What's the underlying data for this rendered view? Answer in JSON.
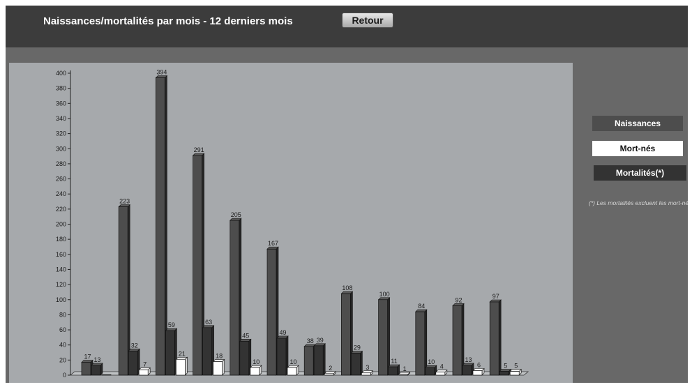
{
  "header": {
    "title": "Naissances/mortalités par mois - 12 derniers mois",
    "back_label": "Retour"
  },
  "legend": {
    "naissances": "Naissances",
    "mort_nes": "Mort-nés",
    "mortalites": "Mortalités(*)"
  },
  "footnote": "(*) Les mortalités excluent les mort-nés",
  "colors": {
    "naissances": "#4d4d4d",
    "mort_nes": "#ffffff",
    "mortalites": "#333333",
    "plot_background": "#a6a9ac",
    "header_background": "#3c3c3c"
  },
  "chart_data": {
    "type": "bar",
    "title": "Naissances/mortalités par mois - 12 derniers mois",
    "xlabel": "",
    "ylabel": "",
    "ylim": [
      0,
      400
    ],
    "y_ticks": [
      0,
      20,
      40,
      60,
      80,
      100,
      120,
      140,
      160,
      180,
      200,
      220,
      240,
      260,
      280,
      300,
      320,
      340,
      360,
      380,
      400
    ],
    "grid": false,
    "legend_position": "right",
    "groups": 12,
    "series": [
      {
        "name": "Naissances",
        "values": [
          17,
          223,
          394,
          291,
          205,
          167,
          38,
          108,
          100,
          84,
          92,
          97
        ]
      },
      {
        "name": "Mortalités(*)",
        "values": [
          13,
          32,
          59,
          63,
          45,
          49,
          39,
          29,
          11,
          10,
          13,
          5
        ]
      },
      {
        "name": "Mort-nés",
        "values": [
          0,
          7,
          21,
          18,
          10,
          10,
          2,
          3,
          1,
          4,
          6,
          5
        ]
      }
    ]
  }
}
